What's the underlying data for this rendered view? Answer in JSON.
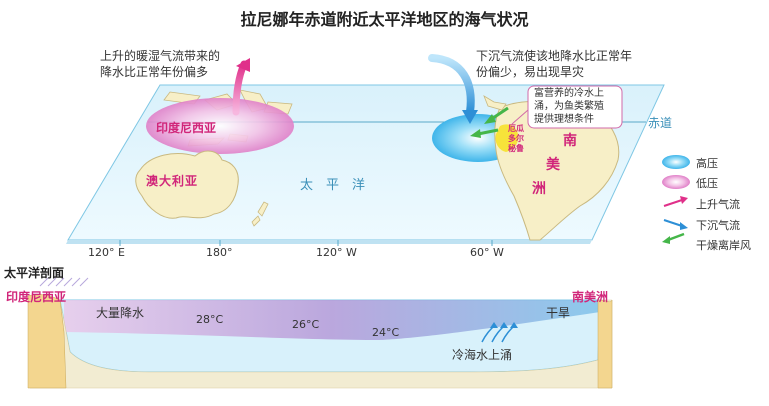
{
  "title": "拉尼娜年赤道附近太平洋地区的海气状况",
  "map": {
    "left_annotation": [
      "上升的暖湿气流带来的",
      "降水比正常年份偏多"
    ],
    "right_annotation": [
      "下沉气流使该地降水比正常年",
      "份偏少，易出现旱灾"
    ],
    "callout": [
      "富营养的冷水上",
      "涌，为鱼类繁殖",
      "提供理想条件"
    ],
    "equator_label": "赤道",
    "indonesia_label": "印度尼西亚",
    "australia_label": "澳大利亚",
    "pacific_label": "太　平　洋",
    "peru_label": [
      "厄瓜",
      "多尔",
      "秘鲁"
    ],
    "south_america_label": [
      "南",
      "美",
      "洲"
    ],
    "longitudes": [
      "120° E",
      "180°",
      "120° W",
      "60° W"
    ]
  },
  "legend": [
    {
      "label": "高压",
      "icon": "high-pressure-icon",
      "color": "#5cc4ef"
    },
    {
      "label": "低压",
      "icon": "low-pressure-icon",
      "color": "#e89ad6"
    },
    {
      "label": "上升气流",
      "icon": "rising-airflow-icon",
      "color": "#e0308a"
    },
    {
      "label": "下沉气流",
      "icon": "sinking-airflow-icon",
      "color": "#2d8fd6"
    },
    {
      "label": "干燥离岸风",
      "icon": "dry-offshore-wind-icon",
      "color": "#45b649"
    }
  ],
  "section": {
    "title": "太平洋剖面",
    "indonesia_label": "印度尼西亚",
    "south_america_label": "南美洲",
    "heavy_rain": "大量降水",
    "drought": "干旱",
    "temps": [
      "28°C",
      "26°C",
      "24°C"
    ],
    "upwelling": "冷海水上涌"
  }
}
